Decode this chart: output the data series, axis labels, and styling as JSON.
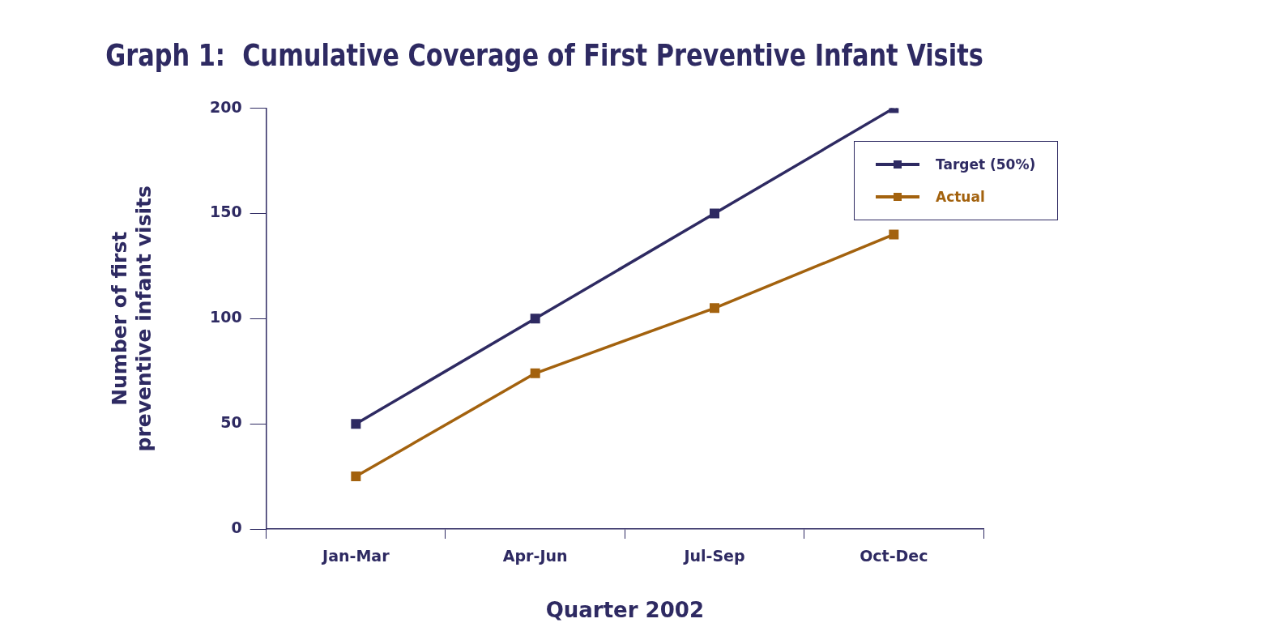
{
  "chart_data": {
    "type": "line",
    "title": "Graph 1:  Cumulative Coverage of First Preventive Infant Visits",
    "xlabel": "Quarter 2002",
    "ylabel": "Number of first preventive infant visits",
    "categories": [
      "Jan-Mar",
      "Apr-Jun",
      "Jul-Sep",
      "Oct-Dec"
    ],
    "series": [
      {
        "name": "Target (50%)",
        "color": "#2e2a62",
        "values": [
          50,
          100,
          150,
          200
        ]
      },
      {
        "name": "Actual",
        "color": "#a3620e",
        "values": [
          25,
          74,
          105,
          140
        ]
      }
    ],
    "ylim": [
      0,
      200
    ],
    "yticks": [
      0,
      50,
      100,
      150,
      200
    ],
    "grid": false,
    "legend": "top right",
    "marker": "square",
    "line_style": "solid"
  }
}
